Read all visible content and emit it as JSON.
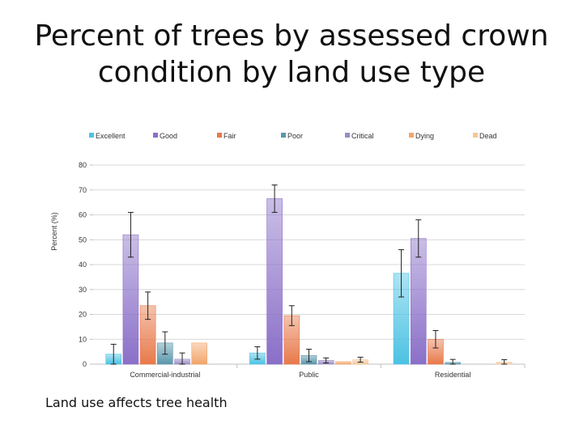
{
  "slide": {
    "title_line1": "Percent of trees by assessed crown",
    "title_line2": "condition by land use type",
    "caption": "Land use affects tree health"
  },
  "chart_data": {
    "type": "bar",
    "title": "Percent of trees by assessed crown condition by land use type",
    "xlabel": "",
    "ylabel": "Percent (%)",
    "ylim": [
      0,
      80
    ],
    "yticks": [
      0,
      10,
      20,
      30,
      40,
      50,
      60,
      70,
      80
    ],
    "grid": true,
    "legend_position": "top",
    "categories": [
      "Commercial-industrial",
      "Public",
      "Residential"
    ],
    "series": [
      {
        "name": "Excellent",
        "color": "#4CC2E3",
        "values": [
          4,
          4.5,
          36.5
        ],
        "errors": [
          4,
          2.5,
          9.5
        ]
      },
      {
        "name": "Good",
        "color": "#8A6FC8",
        "values": [
          52,
          66.5,
          50.5
        ],
        "errors": [
          9,
          5.5,
          7.5
        ]
      },
      {
        "name": "Fair",
        "color": "#E8794A",
        "values": [
          23.5,
          19.5,
          10
        ],
        "errors": [
          5.5,
          4,
          3.5
        ]
      },
      {
        "name": "Poor",
        "color": "#5A97AC",
        "values": [
          8.5,
          3.5,
          0.7
        ],
        "errors": [
          4.5,
          2.5,
          1.2
        ]
      },
      {
        "name": "Critical",
        "color": "#9B8CC4",
        "values": [
          2,
          1.5,
          0
        ],
        "errors": [
          2.5,
          1,
          0
        ]
      },
      {
        "name": "Dying",
        "color": "#F2A66C",
        "values": [
          8.5,
          1,
          0
        ],
        "errors": [
          0,
          0,
          0
        ]
      },
      {
        "name": "Dead",
        "color": "#F6C79A",
        "values": [
          0,
          1.8,
          0.8
        ],
        "errors": [
          0,
          1,
          1
        ]
      }
    ]
  }
}
